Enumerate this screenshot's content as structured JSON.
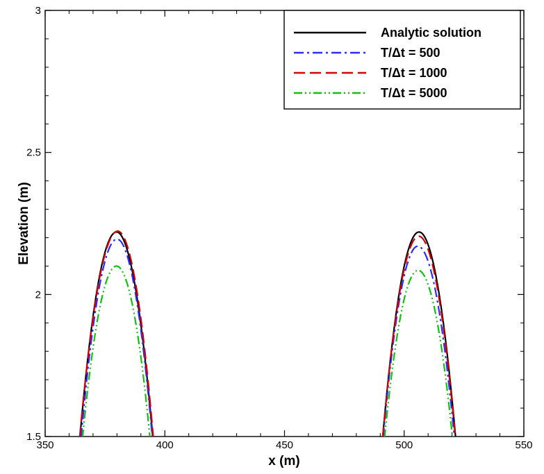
{
  "chart_data": {
    "type": "line",
    "title": "",
    "xlabel": "x (m)",
    "ylabel": "Elevation (m)",
    "xlim": [
      350,
      550
    ],
    "ylim": [
      1.5,
      3
    ],
    "x_ticks": [
      "350",
      "400",
      "450",
      "500",
      "550"
    ],
    "y_ticks": [
      "1.5",
      "2",
      "2.5",
      "3"
    ],
    "grid": false,
    "legend_position": "top-right",
    "series": [
      {
        "name": "Analytic solution",
        "color": "#000000",
        "dash": "solid",
        "peaks": [
          {
            "center": 379.8,
            "peak": 2.225,
            "left_root": 364.5,
            "right_root": 395.0
          },
          {
            "center": 506.2,
            "peak": 2.225,
            "left_root": 491.0,
            "right_root": 521.5
          }
        ]
      },
      {
        "name": "T/Δt = 500",
        "color": "#2b2bff",
        "dash": "dashdot",
        "peaks": [
          {
            "center": 380.0,
            "peak": 2.2,
            "left_root": 365.0,
            "right_root": 394.8
          },
          {
            "center": 505.7,
            "peak": 2.175,
            "left_root": 491.2,
            "right_root": 521.0
          }
        ]
      },
      {
        "name": "T/Δt = 1000",
        "color": "#d40000",
        "dash": "dashed",
        "peaks": [
          {
            "center": 380.3,
            "peak": 2.228,
            "left_root": 364.4,
            "right_root": 395.2
          },
          {
            "center": 506.1,
            "peak": 2.21,
            "left_root": 491.0,
            "right_root": 521.4
          }
        ]
      },
      {
        "name": "T/Δt = 5000",
        "color": "#10c010",
        "dash": "dashdotdot",
        "peaks": [
          {
            "center": 379.8,
            "peak": 2.105,
            "left_root": 365.6,
            "right_root": 393.8
          },
          {
            "center": 505.8,
            "peak": 2.09,
            "left_root": 491.8,
            "right_root": 520.2
          }
        ]
      }
    ]
  }
}
